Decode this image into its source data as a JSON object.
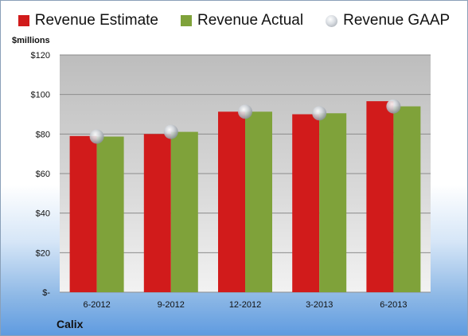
{
  "chart_data": {
    "type": "bar",
    "categories": [
      "6-2012",
      "9-2012",
      "12-2012",
      "3-2013",
      "6-2013"
    ],
    "series": [
      {
        "name": "Revenue Estimate",
        "values": [
          79,
          80,
          91.3,
          90,
          96.6
        ],
        "color": "#d11b1b",
        "kind": "bar"
      },
      {
        "name": "Revenue Actual",
        "values": [
          78.7,
          81.1,
          91.3,
          90.5,
          94
        ],
        "color": "#7fa23a",
        "kind": "bar"
      },
      {
        "name": "Revenue GAAP",
        "values": [
          78.7,
          81.1,
          91.3,
          90.5,
          94
        ],
        "color": "#c7ccd2",
        "kind": "marker"
      }
    ],
    "ylabel": "$millions",
    "ylim": [
      0,
      120
    ],
    "yticks": [
      0,
      20,
      40,
      60,
      80,
      100,
      120
    ],
    "ytick_labels": [
      "$-",
      "$20",
      "$40",
      "$60",
      "$80",
      "$100",
      "$120"
    ],
    "grid": true,
    "legend_position": "top"
  },
  "company": "Calix"
}
